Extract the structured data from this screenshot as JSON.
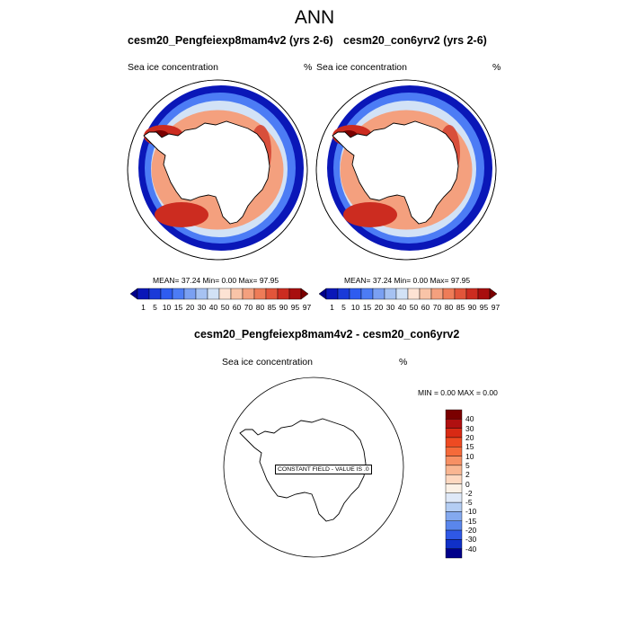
{
  "main_title": "ANN",
  "panel_left": {
    "title": "cesm20_Pengfeiexp8mam4v2 (yrs 2-6)",
    "field": "Sea ice concentration",
    "unit": "%",
    "stats": "MEAN=  37.24  Min=   0.00  Max=  97.95"
  },
  "panel_right": {
    "title": "cesm20_con6yrv2 (yrs 2-6)",
    "field": "Sea ice concentration",
    "unit": "%",
    "stats": "MEAN=  37.24  Min=   0.00  Max=  97.95"
  },
  "panel_diff": {
    "title": "cesm20_Pengfeiexp8mam4v2 - cesm20_con6yrv2",
    "field": "Sea ice concentration",
    "unit": "%",
    "minmax": "MIN =   0.00 MAX =   0.00",
    "constant_label": "CONSTANT FIELD - VALUE IS .0"
  },
  "colorbar_main": {
    "labels": [
      "1",
      "5",
      "10",
      "15",
      "20",
      "30",
      "40",
      "50",
      "60",
      "70",
      "80",
      "85",
      "90",
      "95",
      "97"
    ],
    "colors": [
      "#00008a",
      "#0a17b8",
      "#1a3ad8",
      "#2e5cf0",
      "#4c7cf5",
      "#7aa0f2",
      "#a6c2f2",
      "#d2e2f6",
      "#fde3d4",
      "#f9c4a8",
      "#f4a07e",
      "#ee7c58",
      "#e2553a",
      "#cc2c20",
      "#a80e0e",
      "#7a0000"
    ]
  },
  "colorbar_diff": {
    "labels": [
      "40",
      "30",
      "20",
      "15",
      "10",
      "5",
      "2",
      "0",
      "-2",
      "-5",
      "-10",
      "-15",
      "-20",
      "-30",
      "-40"
    ],
    "colors": [
      "#7a0000",
      "#b01010",
      "#d82a14",
      "#ee4a22",
      "#f56a3a",
      "#f79064",
      "#f9b692",
      "#fdd8c0",
      "#fbf1e6",
      "#dfe9f8",
      "#b4cdf3",
      "#84a9ef",
      "#5a86ec",
      "#2f58e6",
      "#1030c8",
      "#00008a"
    ]
  },
  "map_colors": {
    "ocean_outer": "#ffffff",
    "ice_edge": "#0a17b8",
    "ice_mid": "#4c7cf5",
    "ice_light": "#d2e2f6",
    "ice_warm": "#f4a07e",
    "ice_hot": "#cc2c20",
    "ice_max": "#7a0000"
  }
}
